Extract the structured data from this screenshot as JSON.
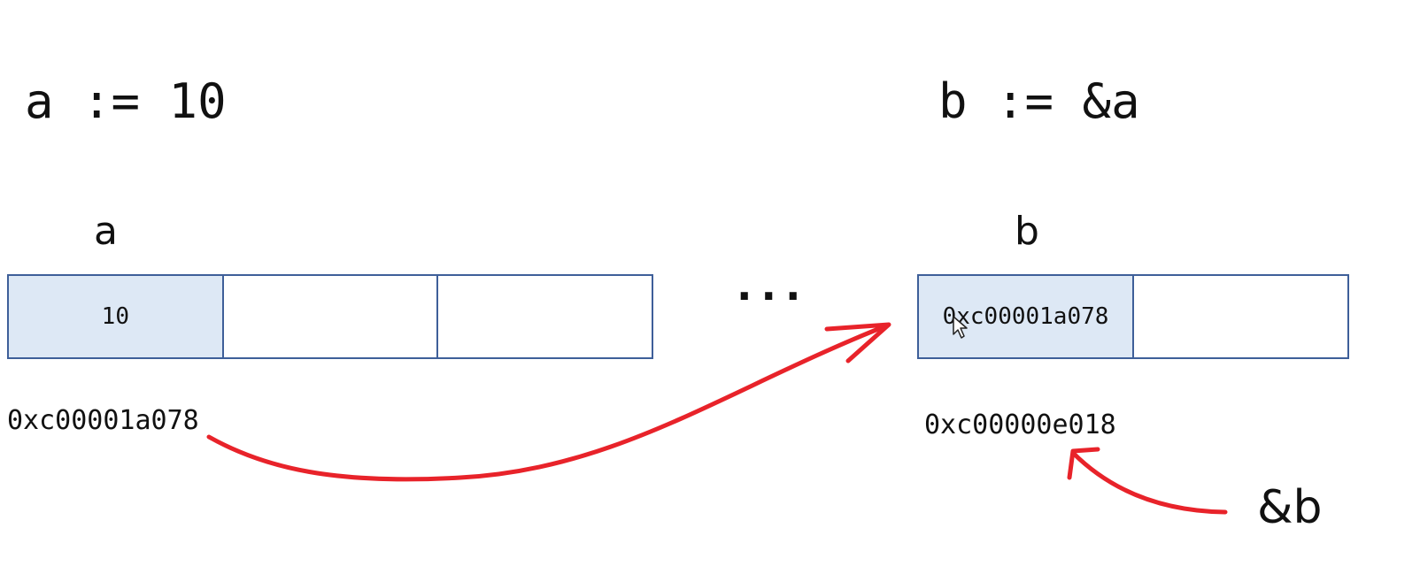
{
  "statements": {
    "assign_a": "a := 10",
    "assign_b": "b := &a"
  },
  "variables": {
    "a": {
      "label": "a",
      "cells": [
        "10",
        "",
        ""
      ],
      "address": "0xc00001a078"
    },
    "b": {
      "label": "b",
      "cells": [
        "0xc00001a078",
        ""
      ],
      "address": "0xc00000e018"
    }
  },
  "ellipsis": "...",
  "address_of_b": "&b",
  "colors": {
    "cell_border": "#3e5f99",
    "cell_fill": "#dde8f5",
    "arrow": "#e8232a"
  }
}
